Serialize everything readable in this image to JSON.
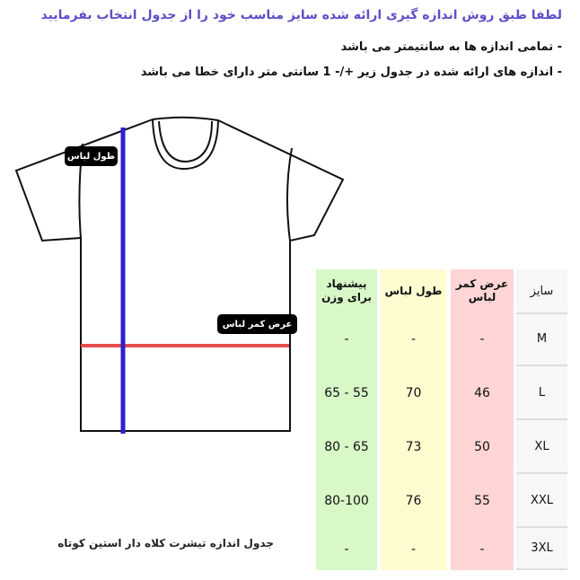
{
  "header": {
    "title": "لطفا طبق روش اندازه گیری ارائه شده سایز مناسب خود را از جدول انتخاب بفرمایید",
    "notes": [
      "- تمامی اندازه ها به سانتیمتر می باشد",
      "- اندازه های ارائه شده در جدول زیر +/- 1 سانتی متر دارای خطا می باشد"
    ]
  },
  "diagram": {
    "length_label": "طول لباس",
    "width_label": "عرض کمر لباس",
    "colors": {
      "length_line": "#2d1fd0",
      "width_line": "#e84c4c"
    }
  },
  "caption": "جدول اندازه تیشرت کلاه دار استین کوتاه",
  "table": {
    "headers": {
      "size": "سایز",
      "waist": "عرض کمر لباس",
      "length": "طول لباس",
      "weight": "پیشنهاد برای وزن"
    },
    "rows": [
      {
        "size": "M",
        "waist": "-",
        "length": "-",
        "weight": "-"
      },
      {
        "size": "L",
        "waist": "46",
        "length": "70",
        "weight": "55 - 65"
      },
      {
        "size": "XL",
        "waist": "50",
        "length": "73",
        "weight": "65 - 80"
      },
      {
        "size": "XXL",
        "waist": "55",
        "length": "76",
        "weight": "80-100"
      },
      {
        "size": "3XL",
        "waist": "-",
        "length": "-",
        "weight": "-"
      }
    ],
    "colors": {
      "size": "#f7f7f7",
      "waist": "#ffd5d5",
      "length": "#fffcd0",
      "weight": "#d8f8c8"
    }
  }
}
